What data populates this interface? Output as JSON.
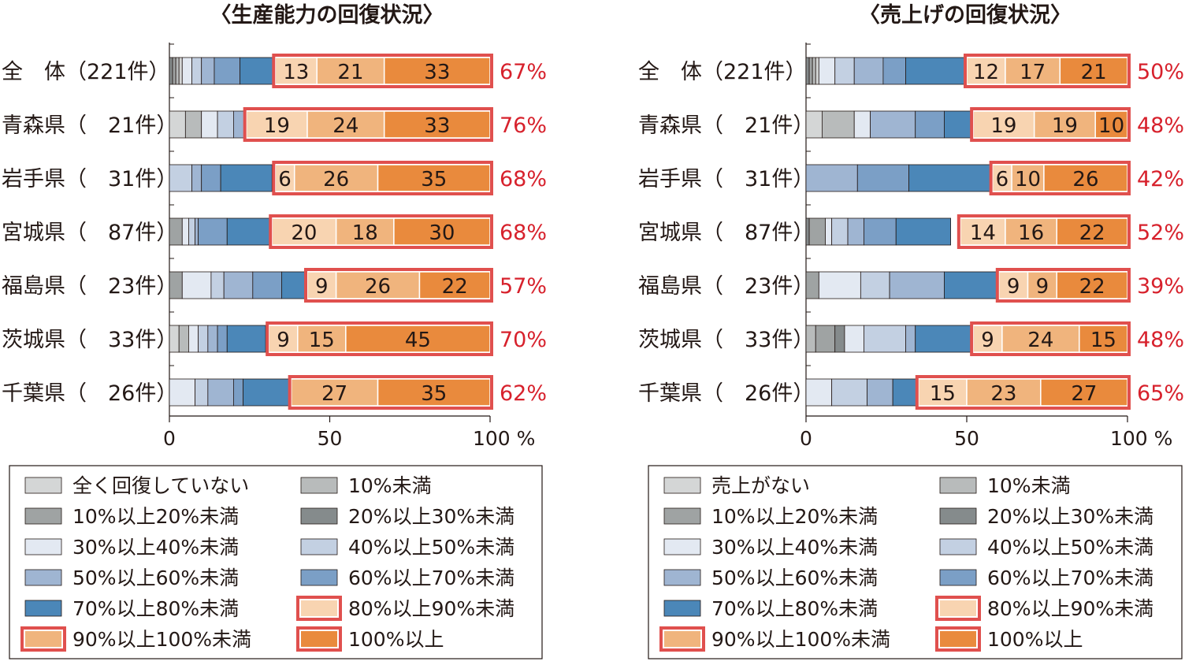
{
  "colors": {
    "none": "#d4d6d6",
    "lt10": "#b8bbbb",
    "p10_20": "#9fa3a3",
    "p20_30": "#858b8c",
    "p30_40": "#e3e9f2",
    "p40_50": "#c3d0e2",
    "p50_60": "#9fb5d2",
    "p60_70": "#7b9fc6",
    "p70_80": "#4b87b8",
    "p80_90": "#f8d4b1",
    "p90_100": "#f0b47d",
    "p100": "#e98a3d",
    "highlight_border": "#e0504e",
    "percent_text": "#d7212c"
  },
  "chart_data": [
    {
      "type": "bar",
      "title": "〈生産能力の回復状況〉",
      "categories": [
        "全　体（221件）",
        "青森県（　21件）",
        "岩手県（　31件）",
        "宮城県（　87件）",
        "福島県（　23件）",
        "茨城県（　33件）",
        "千葉県（　26件）"
      ],
      "xlim": [
        0,
        100
      ],
      "xticks": [
        "0",
        "50",
        "100 %"
      ],
      "series": [
        {
          "key": "p80_90",
          "name": "80%以上90%未満",
          "values": [
            13,
            19,
            6,
            20,
            9,
            9,
            0
          ]
        },
        {
          "key": "p90_100",
          "name": "90%以上100%未満",
          "values": [
            21,
            24,
            26,
            18,
            26,
            15,
            27
          ]
        },
        {
          "key": "p100",
          "name": "100%以上",
          "values": [
            33,
            33,
            35,
            30,
            22,
            45,
            35
          ]
        }
      ],
      "totals": [
        "67%",
        "76%",
        "68%",
        "68%",
        "57%",
        "70%",
        "62%"
      ],
      "lower_segments": [
        [
          [
            "p20_30",
            1
          ],
          [
            "p10_20",
            1
          ],
          [
            "lt10",
            1
          ],
          [
            "none",
            1
          ],
          [
            "p30_40",
            3
          ],
          [
            "p40_50",
            3
          ],
          [
            "p50_60",
            4
          ],
          [
            "p60_70",
            8
          ],
          [
            "p70_80",
            11
          ]
        ],
        [
          [
            "none",
            5
          ],
          [
            "lt10",
            5
          ],
          [
            "p30_40",
            5
          ],
          [
            "p40_50",
            5
          ],
          [
            "p50_60",
            4
          ]
        ],
        [
          [
            "p40_50",
            7
          ],
          [
            "p50_60",
            3
          ],
          [
            "p60_70",
            6
          ],
          [
            "p70_80",
            16
          ]
        ],
        [
          [
            "p10_20",
            4
          ],
          [
            "p30_40",
            2
          ],
          [
            "p40_50",
            2
          ],
          [
            "p50_60",
            1
          ],
          [
            "p60_70",
            9
          ],
          [
            "p70_80",
            14
          ]
        ],
        [
          [
            "p10_20",
            4
          ],
          [
            "p30_40",
            9
          ],
          [
            "p40_50",
            4
          ],
          [
            "p50_60",
            9
          ],
          [
            "p60_70",
            9
          ],
          [
            "p70_80",
            8
          ]
        ],
        [
          [
            "none",
            3
          ],
          [
            "lt10",
            3
          ],
          [
            "p30_40",
            3
          ],
          [
            "p40_50",
            3
          ],
          [
            "p50_60",
            3
          ],
          [
            "p60_70",
            3
          ],
          [
            "p70_80",
            12
          ]
        ],
        [
          [
            "p30_40",
            8
          ],
          [
            "p40_50",
            4
          ],
          [
            "p50_60",
            8
          ],
          [
            "p60_70",
            3
          ],
          [
            "p70_80",
            15
          ]
        ]
      ],
      "legend": [
        {
          "key": "none",
          "label": "全く回復していない"
        },
        {
          "key": "lt10",
          "label": "10%未満"
        },
        {
          "key": "p10_20",
          "label": "10%以上20%未満"
        },
        {
          "key": "p20_30",
          "label": "20%以上30%未満"
        },
        {
          "key": "p30_40",
          "label": "30%以上40%未満"
        },
        {
          "key": "p40_50",
          "label": "40%以上50%未満"
        },
        {
          "key": "p50_60",
          "label": "50%以上60%未満"
        },
        {
          "key": "p60_70",
          "label": "60%以上70%未満"
        },
        {
          "key": "p70_80",
          "label": "70%以上80%未満"
        },
        {
          "key": "p80_90",
          "label": "80%以上90%未満"
        },
        {
          "key": "p90_100",
          "label": "90%以上100%未満"
        },
        {
          "key": "p100",
          "label": "100%以上"
        }
      ]
    },
    {
      "type": "bar",
      "title": "〈売上げの回復状況〉",
      "categories": [
        "全　体（221件）",
        "青森県（　21件）",
        "岩手県（　31件）",
        "宮城県（　87件）",
        "福島県（　23件）",
        "茨城県（　33件）",
        "千葉県（　26件）"
      ],
      "xlim": [
        0,
        100
      ],
      "xticks": [
        "0",
        "50",
        "100 %"
      ],
      "series": [
        {
          "key": "p80_90",
          "name": "80%以上90%未満",
          "values": [
            12,
            19,
            6,
            14,
            9,
            9,
            15
          ]
        },
        {
          "key": "p90_100",
          "name": "90%以上100%未満",
          "values": [
            17,
            19,
            10,
            16,
            9,
            24,
            23
          ]
        },
        {
          "key": "p100",
          "name": "100%以上",
          "values": [
            21,
            10,
            26,
            22,
            22,
            15,
            27
          ]
        }
      ],
      "totals": [
        "50%",
        "48%",
        "42%",
        "52%",
        "39%",
        "48%",
        "65%"
      ],
      "lower_segments": [
        [
          [
            "p20_30",
            1
          ],
          [
            "p10_20",
            1
          ],
          [
            "lt10",
            1
          ],
          [
            "none",
            1
          ],
          [
            "p30_40",
            5
          ],
          [
            "p40_50",
            6
          ],
          [
            "p50_60",
            9
          ],
          [
            "p60_70",
            7
          ],
          [
            "p70_80",
            19
          ]
        ],
        [
          [
            "none",
            5
          ],
          [
            "lt10",
            10
          ],
          [
            "p30_40",
            5
          ],
          [
            "p50_60",
            14
          ],
          [
            "p60_70",
            9
          ],
          [
            "p70_80",
            9
          ]
        ],
        [
          [
            "p50_60",
            16
          ],
          [
            "p60_70",
            16
          ],
          [
            "p70_80",
            26
          ]
        ],
        [
          [
            "p20_30",
            1
          ],
          [
            "p10_20",
            5
          ],
          [
            "p30_40",
            2
          ],
          [
            "p40_50",
            5
          ],
          [
            "p50_60",
            5
          ],
          [
            "p60_70",
            10
          ],
          [
            "p70_80",
            17
          ]
        ],
        [
          [
            "p10_20",
            4
          ],
          [
            "p30_40",
            13
          ],
          [
            "p40_50",
            9
          ],
          [
            "p50_60",
            17
          ],
          [
            "p60_70",
            0
          ],
          [
            "p70_80",
            18
          ]
        ],
        [
          [
            "lt10",
            3
          ],
          [
            "p10_20",
            6
          ],
          [
            "p20_30",
            3
          ],
          [
            "p30_40",
            6
          ],
          [
            "p40_50",
            13
          ],
          [
            "p50_60",
            3
          ],
          [
            "p70_80",
            18
          ]
        ],
        [
          [
            "p30_40",
            8
          ],
          [
            "p40_50",
            11
          ],
          [
            "p50_60",
            8
          ],
          [
            "p70_80",
            8
          ]
        ]
      ],
      "legend": [
        {
          "key": "none",
          "label": "売上がない"
        },
        {
          "key": "lt10",
          "label": "10%未満"
        },
        {
          "key": "p10_20",
          "label": "10%以上20%未満"
        },
        {
          "key": "p20_30",
          "label": "20%以上30%未満"
        },
        {
          "key": "p30_40",
          "label": "30%以上40%未満"
        },
        {
          "key": "p40_50",
          "label": "40%以上50%未満"
        },
        {
          "key": "p50_60",
          "label": "50%以上60%未満"
        },
        {
          "key": "p60_70",
          "label": "60%以上70%未満"
        },
        {
          "key": "p70_80",
          "label": "70%以上80%未満"
        },
        {
          "key": "p80_90",
          "label": "80%以上90%未満"
        },
        {
          "key": "p90_100",
          "label": "90%以上100%未満"
        },
        {
          "key": "p100",
          "label": "100%以上"
        }
      ]
    }
  ]
}
